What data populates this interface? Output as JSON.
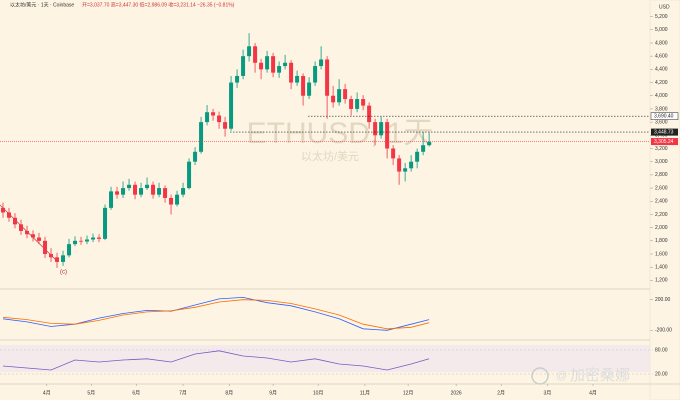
{
  "chart_data": {
    "type": "candlestick",
    "title": "以太坊/美元 · 1天 · Coinbase",
    "ohlc_label": "开=3,037.70 高=3,447.30 低=2,986.09 收=3,231.14 −26.35 (−0.81%)",
    "currency": "USD",
    "watermark": "ETHUSD, 1天",
    "watermark_sub": "以太坊/美元",
    "annotation": "(c)",
    "brand": "加密桑娜",
    "up_color": "#089981",
    "down_color": "#f23645",
    "open": [
      2300,
      2230,
      2150,
      2050,
      1950,
      1900,
      1850,
      1800,
      1600,
      1550,
      1480,
      1580,
      1750,
      1800,
      1790,
      1820,
      1850,
      1830,
      2300,
      2550,
      2500,
      2600,
      2650,
      2500,
      2600,
      2650,
      2500,
      2600,
      2450,
      2350,
      2500,
      2600,
      3000,
      3150,
      3600,
      3750,
      3700,
      3600,
      3500,
      4200,
      4300,
      4600,
      4750,
      4500,
      4400,
      4600,
      4350,
      4450,
      4500,
      4200,
      4300,
      4000,
      4200,
      4450,
      4550,
      4000,
      3900,
      4100,
      3950,
      3800,
      3950,
      3850,
      3600,
      3400,
      3600,
      3200,
      3050,
      2850,
      2900,
      3000,
      3150,
      3250
    ],
    "high": [
      2380,
      2300,
      2220,
      2120,
      2030,
      1960,
      1920,
      1860,
      1690,
      1620,
      1650,
      1830,
      1870,
      1860,
      1880,
      1910,
      1900,
      2350,
      2620,
      2620,
      2700,
      2740,
      2700,
      2680,
      2760,
      2700,
      2680,
      2640,
      2500,
      2560,
      2680,
      3050,
      3220,
      3680,
      3860,
      3800,
      3760,
      3680,
      4300,
      4400,
      4700,
      4950,
      4800,
      4560,
      4680,
      4650,
      4520,
      4620,
      4540,
      4380,
      4340,
      4280,
      4520,
      4750,
      4600,
      4150,
      4250,
      4180,
      4000,
      4050,
      4010,
      3900,
      3650,
      3680,
      3650,
      3250,
      3100,
      2980,
      3100,
      3200,
      3450,
      3440
    ],
    "low": [
      2150,
      2090,
      1990,
      1890,
      1840,
      1790,
      1750,
      1540,
      1480,
      1390,
      1420,
      1550,
      1720,
      1740,
      1750,
      1780,
      1780,
      1810,
      2270,
      2440,
      2450,
      2560,
      2430,
      2460,
      2570,
      2440,
      2460,
      2380,
      2200,
      2320,
      2460,
      2580,
      2950,
      3120,
      3550,
      3620,
      3500,
      3380,
      3470,
      4120,
      4250,
      4520,
      4350,
      4250,
      4350,
      4280,
      4270,
      4400,
      4100,
      4150,
      3850,
      3950,
      4150,
      4400,
      3650,
      3820,
      3850,
      3880,
      3700,
      3750,
      3780,
      3500,
      3250,
      3350,
      3050,
      2950,
      2650,
      2700,
      2850,
      2900,
      3100,
      3230
    ],
    "close": [
      2230,
      2150,
      2050,
      1950,
      1900,
      1850,
      1800,
      1600,
      1550,
      1480,
      1580,
      1750,
      1800,
      1790,
      1820,
      1850,
      1830,
      2300,
      2550,
      2500,
      2600,
      2650,
      2500,
      2600,
      2650,
      2500,
      2600,
      2450,
      2350,
      2500,
      2600,
      3000,
      3150,
      3600,
      3750,
      3700,
      3600,
      3500,
      4200,
      4300,
      4600,
      4750,
      4500,
      4400,
      4600,
      4350,
      4450,
      4500,
      4200,
      4300,
      4000,
      4200,
      4450,
      4550,
      4000,
      3900,
      4100,
      3950,
      3800,
      3950,
      3850,
      3600,
      3400,
      3600,
      3200,
      3050,
      2850,
      2900,
      3000,
      3150,
      3250,
      3300
    ],
    "xlim": [
      -0.5,
      107.8
    ],
    "xticks": [
      {
        "value": 7.3,
        "label": "4月"
      },
      {
        "value": 14.7,
        "label": "5月"
      },
      {
        "value": 22.2,
        "label": "6月"
      },
      {
        "value": 30,
        "label": "7月"
      },
      {
        "value": 37.7,
        "label": "8月"
      },
      {
        "value": 45,
        "label": "9月"
      },
      {
        "value": 52.5,
        "label": "10月"
      },
      {
        "value": 60.3,
        "label": "11月"
      },
      {
        "value": 67.5,
        "label": "12月"
      },
      {
        "value": 75.5,
        "label": "2026"
      },
      {
        "value": 83,
        "label": "2月"
      },
      {
        "value": 90.7,
        "label": "3月"
      },
      {
        "value": 98.3,
        "label": "4月"
      }
    ],
    "ylim": [
      1100,
      5300
    ],
    "yticks": [
      {
        "value": 1200,
        "label": "1,200"
      },
      {
        "value": 1400,
        "label": "1,400"
      },
      {
        "value": 1600,
        "label": "1,600"
      },
      {
        "value": 1800,
        "label": "1,800"
      },
      {
        "value": 2000,
        "label": "2,000"
      },
      {
        "value": 2200,
        "label": "2,200"
      },
      {
        "value": 2400,
        "label": "2,400"
      },
      {
        "value": 2600,
        "label": "2,600"
      },
      {
        "value": 2800,
        "label": "2,800"
      },
      {
        "value": 3000,
        "label": "3,000"
      },
      {
        "value": 3200,
        "label": "3,200"
      },
      {
        "value": 3400,
        "label": "3,400"
      },
      {
        "value": 3600,
        "label": "3,600"
      },
      {
        "value": 3800,
        "label": "3,800"
      },
      {
        "value": 4000,
        "label": "4,000"
      },
      {
        "value": 4200,
        "label": "4,200"
      },
      {
        "value": 4400,
        "label": "4,400"
      },
      {
        "value": 4600,
        "label": "4,600"
      },
      {
        "value": 4800,
        "label": "4,800"
      },
      {
        "value": 5000,
        "label": "5,000"
      },
      {
        "value": 5200,
        "label": "5,200"
      }
    ],
    "levels": [
      {
        "value": 3690.4,
        "label": "3,690.40",
        "style": "outline"
      },
      {
        "value": 3448.73,
        "label": "3,448.73",
        "style": "dark"
      },
      {
        "value": 3305.24,
        "label": "3,305.24",
        "style": "price"
      }
    ],
    "macd": {
      "x": [
        0,
        4,
        8,
        12,
        16,
        20,
        24,
        28,
        32,
        36,
        40,
        44,
        48,
        52,
        56,
        60,
        64,
        68,
        71
      ],
      "ylim": [
        -300,
        300
      ],
      "yticks": [
        {
          "value": 200,
          "label": "200.00"
        },
        {
          "value": -200,
          "label": "-200.00"
        }
      ],
      "series": [
        {
          "color": "#2962ff",
          "values": [
            -50,
            -90,
            -150,
            -120,
            -40,
            20,
            60,
            50,
            130,
            210,
            230,
            160,
            120,
            40,
            -50,
            -180,
            -200,
            -120,
            -60
          ]
        },
        {
          "color": "#ff6d00",
          "values": [
            -30,
            -60,
            -110,
            -120,
            -70,
            0,
            40,
            55,
            100,
            170,
            200,
            190,
            150,
            80,
            0,
            -120,
            -180,
            -160,
            -100
          ]
        }
      ]
    },
    "rsi": {
      "x": [
        0,
        4,
        8,
        12,
        16,
        20,
        24,
        28,
        32,
        36,
        40,
        44,
        48,
        52,
        56,
        60,
        64,
        68,
        71
      ],
      "ylim": [
        0,
        100
      ],
      "yticks": [
        {
          "value": 80,
          "label": "80.00"
        },
        {
          "value": 20,
          "label": "20.00"
        }
      ],
      "color": "#7e57c2",
      "values": [
        40,
        35,
        30,
        55,
        50,
        55,
        58,
        50,
        70,
        78,
        65,
        60,
        50,
        58,
        45,
        40,
        30,
        45,
        58
      ]
    }
  }
}
